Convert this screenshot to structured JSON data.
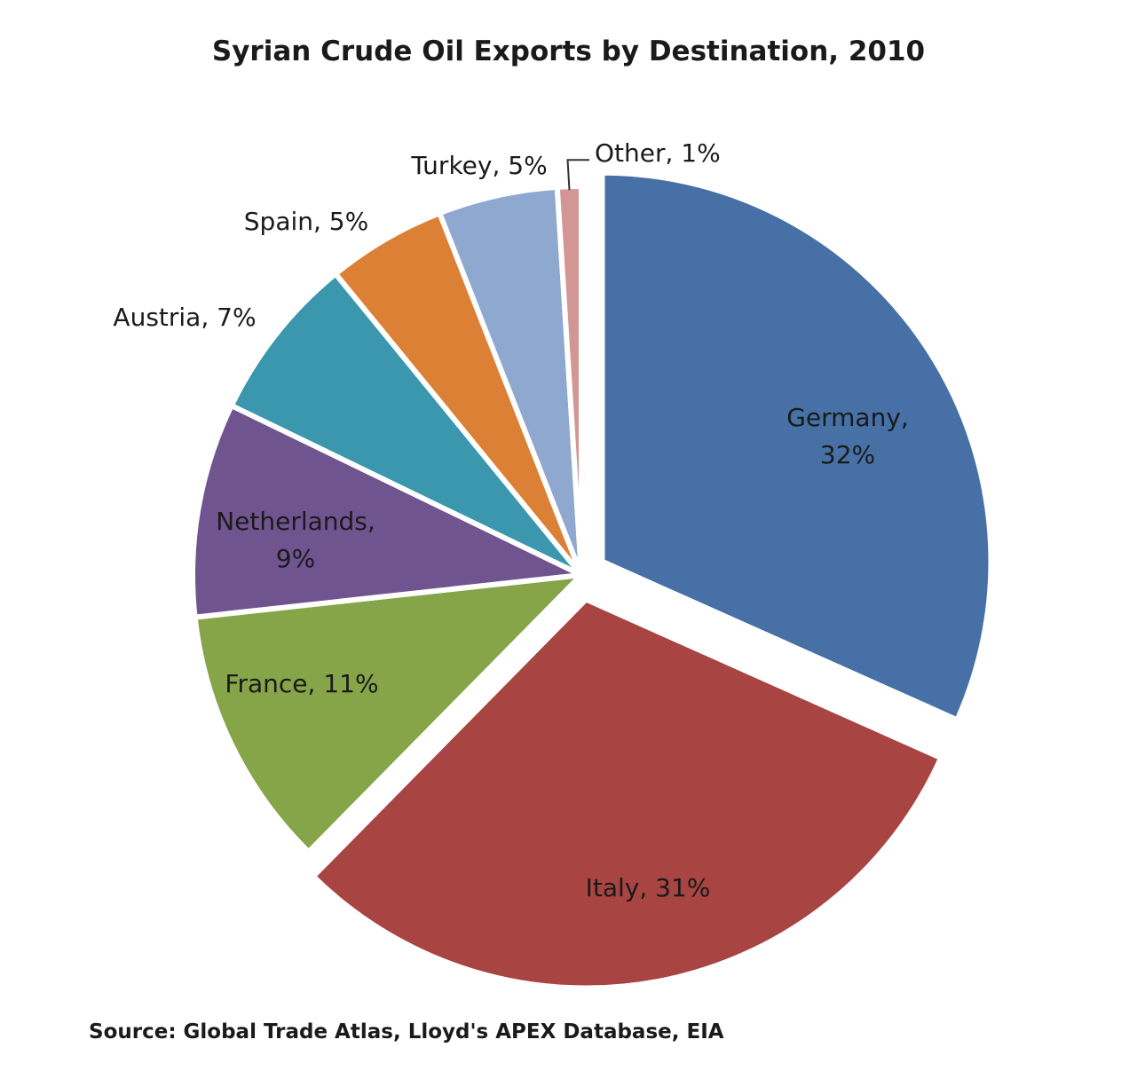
{
  "chart_data": {
    "type": "pie",
    "title": "Syrian Crude Oil Exports by Destination, 2010",
    "source": "Source: Global Trade Atlas, Lloyd's APEX Database, EIA",
    "unit": "%",
    "start": "12 o'clock, clockwise",
    "slices": [
      {
        "name": "Germany",
        "value": 32,
        "label": [
          "Germany,",
          "32%"
        ],
        "color": "#4670a6",
        "exploded": true
      },
      {
        "name": "Italy",
        "value": 31,
        "label": [
          "Italy, 31%"
        ],
        "color": "#a84441",
        "exploded": true
      },
      {
        "name": "France",
        "value": 11,
        "label": [
          "France, 11%"
        ],
        "color": "#86a448"
      },
      {
        "name": "Netherlands",
        "value": 9,
        "label": [
          "Netherlands,",
          "9%"
        ],
        "color": "#6f5490"
      },
      {
        "name": "Austria",
        "value": 7,
        "label": [
          "Austria, 7%"
        ],
        "color": "#3a97ad"
      },
      {
        "name": "Spain",
        "value": 5,
        "label": [
          "Spain, 5%"
        ],
        "color": "#dc8035"
      },
      {
        "name": "Turkey",
        "value": 5,
        "label": [
          "Turkey, 5%"
        ],
        "color": "#8fa8d0"
      },
      {
        "name": "Other",
        "value": 1,
        "label": [
          "Other, 1%"
        ],
        "color": "#d29694"
      }
    ]
  }
}
